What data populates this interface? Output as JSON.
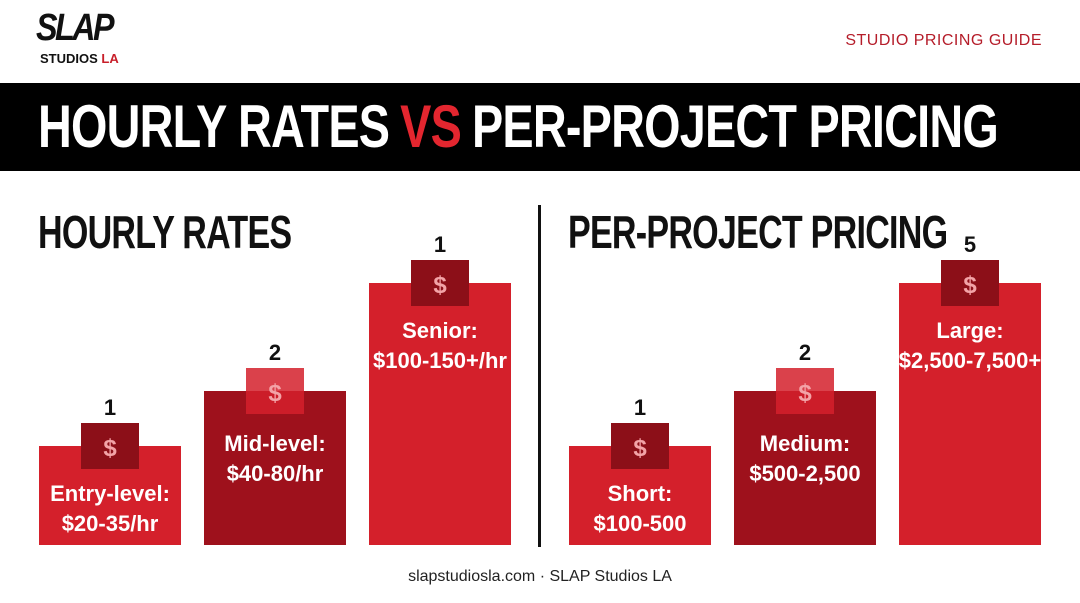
{
  "brand": {
    "logo_word": "SLAP",
    "logo_sub_main": "STUDIOS",
    "logo_sub_accent": "LA"
  },
  "header": {
    "guide_label": "STUDIO PRICING GUIDE"
  },
  "banner": {
    "left": "HOURLY RATES",
    "vs": "VS",
    "right": "PER-PROJECT PRICING"
  },
  "footer": {
    "text": "slapstudiosla.com · SLAP Studios LA"
  },
  "icons": {
    "price_tag": "dollar-tag-icon"
  },
  "colors": {
    "accent": "#e3262f",
    "bar_light": "#d4202b",
    "bar_dark": "#9e111c",
    "tag": "#e0333b",
    "tag_dark": "#8c0f18"
  },
  "chart_data": [
    {
      "type": "bar",
      "title": "HOURLY RATES",
      "categories": [
        "Entry-level:",
        "Mid-level:",
        "Senior:"
      ],
      "ranges": [
        "$20-35/hr",
        "$40-80/hr",
        "$100-150+/hr"
      ],
      "values": [
        1,
        2,
        1
      ],
      "ylim": [
        0,
        3
      ]
    },
    {
      "type": "bar",
      "title": "PER-PROJECT PRICING",
      "categories": [
        "Short:",
        "Medium:",
        "Large:"
      ],
      "ranges": [
        "$100-500",
        "$500-2,500",
        "$2,500-7,500+"
      ],
      "values": [
        1,
        2,
        5
      ],
      "ylim": [
        0,
        6
      ]
    }
  ]
}
